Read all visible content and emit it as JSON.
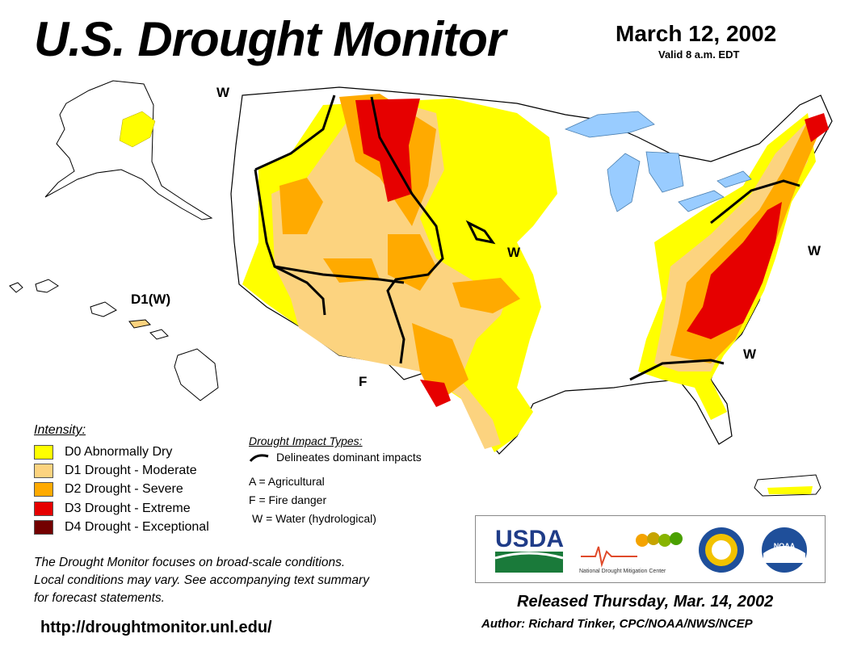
{
  "header": {
    "title": "U.S. Drought Monitor",
    "date": "March 12, 2002",
    "valid": "Valid 8 a.m. EDT"
  },
  "map": {
    "labels": {
      "w_northwest": "W",
      "w_plains": "W",
      "w_midatlantic": "W",
      "w_southeast": "W",
      "f_southwest": "F",
      "hawaii": "D1(W)"
    }
  },
  "legend": {
    "title": "Intensity:",
    "items": [
      {
        "label": "D0 Abnormally Dry",
        "color": "#ffff00"
      },
      {
        "label": "D1 Drought - Moderate",
        "color": "#fcd37f"
      },
      {
        "label": "D2 Drought - Severe",
        "color": "#ffaa00"
      },
      {
        "label": "D3 Drought - Extreme",
        "color": "#e60000"
      },
      {
        "label": "D4 Drought - Exceptional",
        "color": "#730000"
      }
    ]
  },
  "impacts": {
    "title": "Drought Impact Types:",
    "line_label": "Delineates dominant impacts",
    "items": [
      "A = Agricultural",
      "F = Fire danger",
      "W = Water (hydrological)"
    ]
  },
  "note": {
    "line1": "The Drought Monitor focuses on broad-scale conditions.",
    "line2": "Local conditions may vary. See accompanying text summary",
    "line3": "for forecast statements."
  },
  "footer": {
    "url": "http://droughtmonitor.unl.edu/",
    "released": "Released Thursday, Mar. 14, 2002",
    "author": "Author: Richard Tinker, CPC/NOAA/NWS/NCEP"
  },
  "logos": {
    "usda": "USDA",
    "ndmc_text": "National Drought Mitigation Center",
    "noaa": "NOAA"
  }
}
